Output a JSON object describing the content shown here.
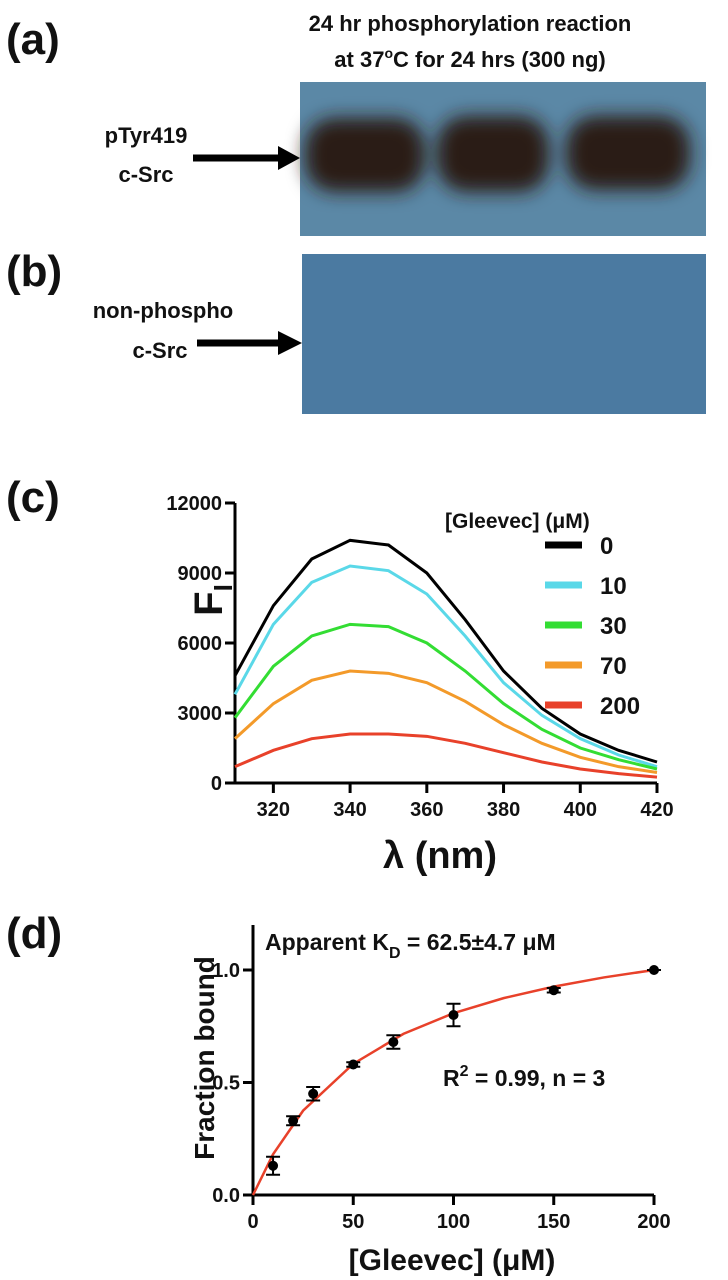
{
  "panels": {
    "a": {
      "label": "(a)",
      "title_line1": "24 hr phosphorylation reaction",
      "title_line2_a": "at 37",
      "title_line2_sup": "o",
      "title_line2_b": "C for 24 hrs (300 ng)",
      "band_label_1": "pTyr419",
      "band_label_2": "c-Src"
    },
    "b": {
      "label": "(b)",
      "band_label_1": "non-phospho",
      "band_label_2": "c-Src"
    },
    "c": {
      "label": "(c)"
    },
    "d": {
      "label": "(d)"
    }
  },
  "chart_data": [
    {
      "type": "line",
      "xlabel": "λ (nm)",
      "ylabel": "F",
      "ylabel_sub": "I",
      "legend_title": "[Gleevec] (μM)",
      "legend": "upper right",
      "x": [
        310,
        320,
        330,
        340,
        350,
        360,
        370,
        380,
        390,
        400,
        410,
        420
      ],
      "xlim": [
        310,
        420
      ],
      "xticks": [
        320,
        340,
        360,
        380,
        400,
        420
      ],
      "ylim": [
        0,
        12000
      ],
      "yticks": [
        0,
        3000,
        6000,
        9000,
        12000
      ],
      "series": [
        {
          "name": "0",
          "color": "#000000",
          "values": [
            4600,
            7600,
            9600,
            10400,
            10200,
            9000,
            7000,
            4800,
            3200,
            2100,
            1400,
            900
          ]
        },
        {
          "name": "10",
          "color": "#5ad8e8",
          "values": [
            3800,
            6800,
            8600,
            9300,
            9100,
            8100,
            6300,
            4300,
            2900,
            1900,
            1200,
            700
          ]
        },
        {
          "name": "30",
          "color": "#33dd33",
          "values": [
            2800,
            5000,
            6300,
            6800,
            6700,
            6000,
            4800,
            3400,
            2300,
            1500,
            1000,
            600
          ]
        },
        {
          "name": "70",
          "color": "#f39a2a",
          "values": [
            1900,
            3400,
            4400,
            4800,
            4700,
            4300,
            3500,
            2500,
            1700,
            1100,
            700,
            450
          ]
        },
        {
          "name": "200",
          "color": "#e8412a",
          "values": [
            700,
            1400,
            1900,
            2100,
            2100,
            2000,
            1700,
            1300,
            900,
            600,
            400,
            250
          ]
        }
      ]
    },
    {
      "type": "scatter",
      "xlabel": "[Gleevec] (μM)",
      "ylabel": "Fraction bound",
      "annotation1_a": "Apparent K",
      "annotation1_sub": "D",
      "annotation1_b": " = 62.5±4.7 μM",
      "annotation2_a": "R",
      "annotation2_sup": "2",
      "annotation2_b": " = 0.99, n = 3",
      "x": [
        10,
        20,
        30,
        50,
        70,
        100,
        150,
        200
      ],
      "values": [
        0.13,
        0.33,
        0.45,
        0.58,
        0.68,
        0.8,
        0.91,
        1.0
      ],
      "errors": [
        0.04,
        0.02,
        0.03,
        0.01,
        0.03,
        0.05,
        0.01,
        0
      ],
      "color": "#000000",
      "fit_color": "#e8412a",
      "fit_x": [
        0,
        10,
        25,
        50,
        75,
        100,
        125,
        150,
        175,
        200
      ],
      "fit_values": [
        0,
        0.181,
        0.375,
        0.583,
        0.716,
        0.808,
        0.875,
        0.926,
        0.967,
        1.0
      ],
      "xlim": [
        0,
        200
      ],
      "xticks": [
        0,
        50,
        100,
        150,
        200
      ],
      "ylim": [
        0,
        1.2
      ],
      "yticks": [
        {
          "value": 0,
          "label": "0.0"
        },
        0.5,
        {
          "value": 1,
          "label": "1.0"
        }
      ]
    }
  ]
}
